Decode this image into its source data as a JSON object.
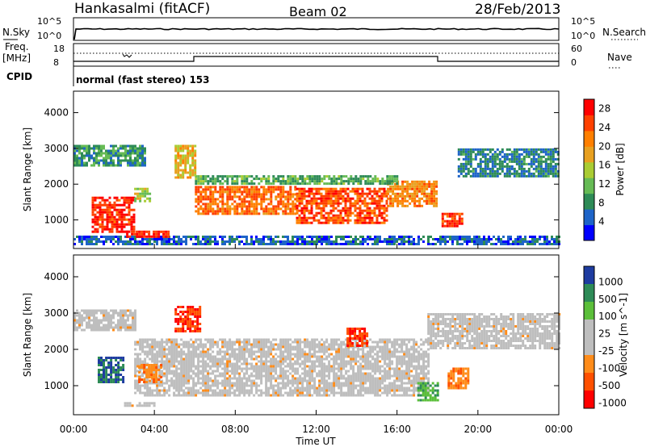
{
  "header": {
    "station": "Hankasalmi (fitACF)",
    "beam": "Beam 02",
    "date": "28/Feb/2013"
  },
  "status_panel": {
    "nsky_label": "N.Sky",
    "nsearch_label": "N.Search",
    "freq_label_line1": "Freq.",
    "freq_label_line2": "[MHz]",
    "cpid_label": "CPID",
    "nave_label": "Nave",
    "left_ticks_top": [
      "10^5",
      "10^0"
    ],
    "right_ticks_top": [
      "10^5",
      "10^0"
    ],
    "freq_ticks": [
      "18",
      "8"
    ],
    "nave_ticks": [
      "60",
      "0"
    ],
    "cpid_text": "normal (fast stereo) 153"
  },
  "colors": {
    "power_scale": [
      "#0000ff",
      "#1e64c8",
      "#2e8b57",
      "#66bb55",
      "#aacc33",
      "#e8a020",
      "#ff7f00",
      "#ff4000",
      "#ff0000"
    ],
    "velocity_scale": [
      "#1e3ca0",
      "#2e8b57",
      "#5bbf3a",
      "#bebebe",
      "#ff8c1a",
      "#ff5000",
      "#ff0000"
    ],
    "ground_scatter": "#bebebe"
  },
  "chart_data": [
    {
      "type": "heatmap",
      "panel": "power",
      "ylabel": "Slant Range [km]",
      "yticks": [
        "1000",
        "2000",
        "3000",
        "4000"
      ],
      "ylim": [
        200,
        4600
      ],
      "xlim_hours": [
        0,
        24
      ],
      "colorbar_label": "Power [dB]",
      "colorbar_ticks": [
        "4",
        "8",
        "12",
        "16",
        "20",
        "24",
        "28"
      ],
      "colorbar_range": [
        0,
        30
      ],
      "regions": [
        {
          "t0": 0.0,
          "t1": 24.0,
          "r0": 300,
          "r1": 560,
          "level": 4
        },
        {
          "t0": 0.9,
          "t1": 3.0,
          "r0": 700,
          "r1": 1650,
          "level": 28
        },
        {
          "t0": 2.6,
          "t1": 4.7,
          "r0": 550,
          "r1": 700,
          "level": 28
        },
        {
          "t0": 3.0,
          "t1": 3.8,
          "r0": 1500,
          "r1": 1900,
          "level": 14
        },
        {
          "t0": 6.0,
          "t1": 11.0,
          "r0": 1150,
          "r1": 1950,
          "level": 24
        },
        {
          "t0": 11.0,
          "t1": 15.5,
          "r0": 900,
          "r1": 1900,
          "level": 26
        },
        {
          "t0": 15.5,
          "t1": 18.0,
          "r0": 1400,
          "r1": 2100,
          "level": 22
        },
        {
          "t0": 18.2,
          "t1": 19.2,
          "r0": 800,
          "r1": 1200,
          "level": 28
        },
        {
          "t0": 6.0,
          "t1": 16.0,
          "r0": 2000,
          "r1": 2250,
          "level": 10
        },
        {
          "t0": 0.0,
          "t1": 3.5,
          "r0": 2500,
          "r1": 3100,
          "level": 8
        },
        {
          "t0": 19.0,
          "t1": 24.0,
          "r0": 2200,
          "r1": 3000,
          "level": 6
        },
        {
          "t0": 5.0,
          "t1": 6.0,
          "r0": 2200,
          "r1": 3100,
          "level": 18
        }
      ]
    },
    {
      "type": "heatmap",
      "panel": "velocity",
      "ylabel": "Slant Range [km]",
      "yticks": [
        "1000",
        "2000",
        "3000",
        "4000"
      ],
      "ylim": [
        200,
        4600
      ],
      "xlim_hours": [
        0,
        24
      ],
      "xticks": [
        "00:00",
        "04:00",
        "08:00",
        "12:00",
        "16:00",
        "20:00",
        "00:00"
      ],
      "xlabel": "Time UT",
      "colorbar_label": "Velocity [m s^-1]",
      "colorbar_ticks": [
        "1000",
        "500",
        "100",
        "25",
        "-25",
        "-100",
        "-500",
        "-1000"
      ],
      "regions": [
        {
          "t0": 0.0,
          "t1": 3.0,
          "r0": 2500,
          "r1": 3100,
          "velocity": 0
        },
        {
          "t0": 3.0,
          "t1": 17.5,
          "r0": 700,
          "r1": 2300,
          "velocity": 0
        },
        {
          "t0": 17.5,
          "t1": 24.0,
          "r0": 2000,
          "r1": 3000,
          "velocity": 0
        },
        {
          "t0": 1.2,
          "t1": 2.4,
          "r0": 1100,
          "r1": 1800,
          "velocity": 600
        },
        {
          "t0": 3.2,
          "t1": 4.3,
          "r0": 1100,
          "r1": 1600,
          "velocity": -150
        },
        {
          "t0": 17.0,
          "t1": 18.0,
          "r0": 600,
          "r1": 1100,
          "velocity": 100
        },
        {
          "t0": 18.5,
          "t1": 19.5,
          "r0": 900,
          "r1": 1500,
          "velocity": -150
        },
        {
          "t0": 13.5,
          "t1": 14.5,
          "r0": 2100,
          "r1": 2600,
          "velocity": -600
        },
        {
          "t0": 5.0,
          "t1": 6.2,
          "r0": 2500,
          "r1": 3200,
          "velocity": -600
        },
        {
          "t0": 2.5,
          "t1": 4.0,
          "r0": 450,
          "r1": 550,
          "velocity": 0
        }
      ]
    }
  ]
}
